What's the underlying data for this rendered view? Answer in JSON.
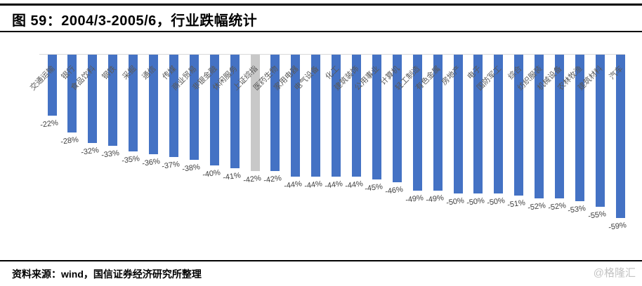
{
  "header": {
    "title": "图 59：2004/3-2005/6，行业跌幅统计"
  },
  "footer": {
    "source": "资料来源：wind，国信证券经济研究所整理"
  },
  "watermark": "@格隆汇",
  "chart_data": {
    "type": "bar",
    "title": "图 59：2004/3-2005/6，行业跌幅统计",
    "orientation": "vertical",
    "categories": [
      "交通运输",
      "银行",
      "食品饮料",
      "钢铁",
      "采掘",
      "通信",
      "传媒",
      "商业贸易",
      "非银金融",
      "休闲服务",
      "上证综指",
      "医药生物",
      "家用电器",
      "电气设备",
      "化工",
      "建筑装饰",
      "公用事业",
      "计算机",
      "轻工制造",
      "有色金属",
      "房地产",
      "电子",
      "国防军工",
      "综合",
      "纺织服装",
      "机械设备",
      "农林牧渔",
      "建筑材料",
      "汽车"
    ],
    "values": [
      -22,
      -28,
      -32,
      -33,
      -35,
      -36,
      -37,
      -38,
      -40,
      -41,
      -42,
      -42,
      -44,
      -44,
      -44,
      -44,
      -45,
      -46,
      -49,
      -49,
      -50,
      -50,
      -50,
      -51,
      -52,
      -52,
      -53,
      -55,
      -59
    ],
    "value_suffix": "%",
    "highlight_index": 10,
    "highlight_category": "上证综指",
    "ylim": [
      -60,
      0
    ],
    "grid": false,
    "legend": false,
    "colors": {
      "bar": "#4472C4",
      "highlight_bar": "#C8C8C8",
      "axis_line": "#D9D9D9",
      "category_label": "#595959",
      "value_label": "#404040"
    }
  }
}
